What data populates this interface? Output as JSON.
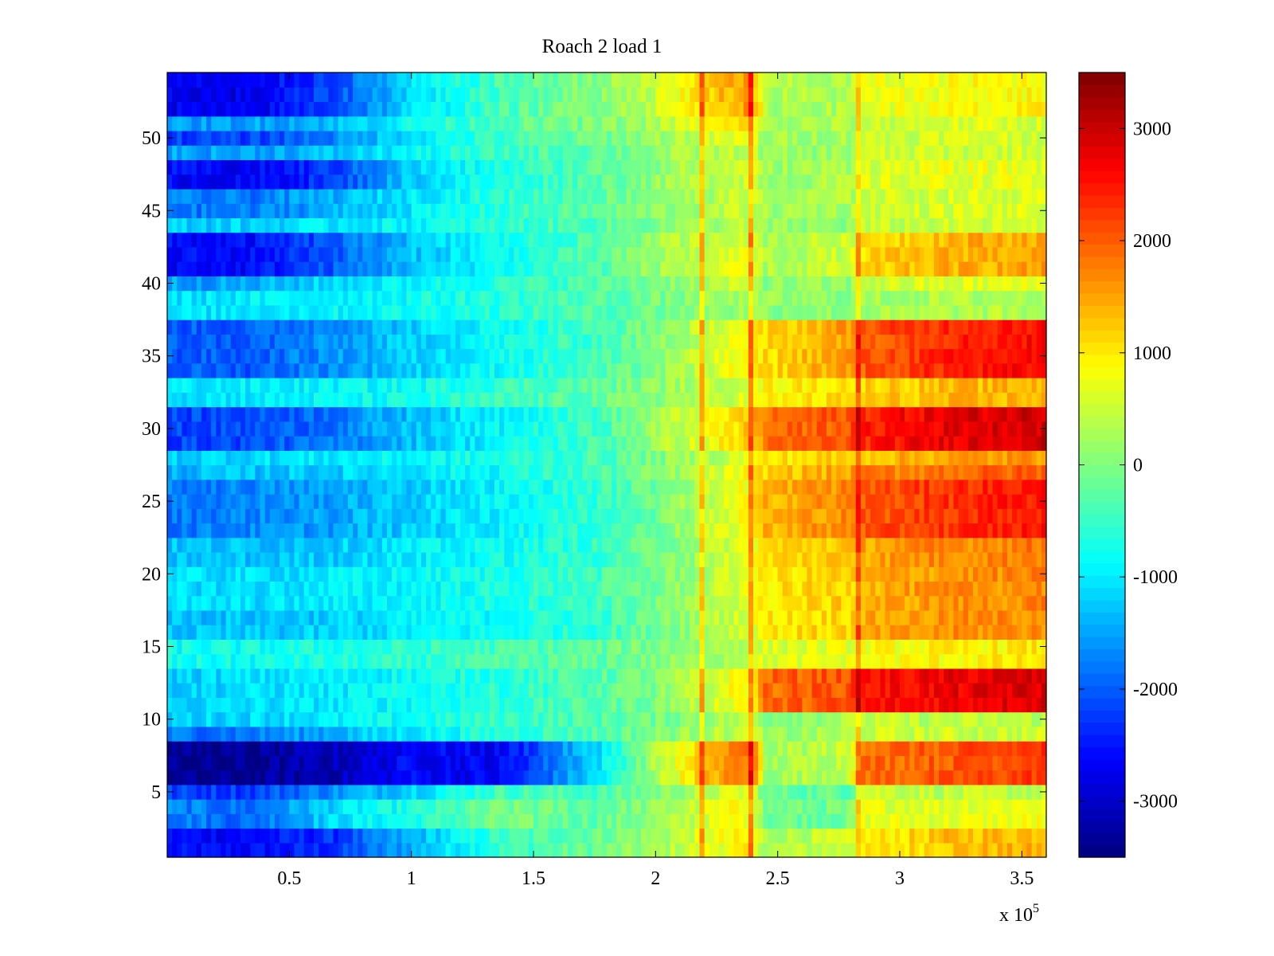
{
  "chart_data": {
    "type": "heatmap",
    "title": "Roach 2 load 1",
    "xlabel": "",
    "ylabel": "",
    "x_multiplier_label": "x 10",
    "x_multiplier_exponent": "5",
    "xlim": [
      0,
      3.6
    ],
    "ylim": [
      0.5,
      54.5
    ],
    "x_ticks": [
      0.5,
      1,
      1.5,
      2,
      2.5,
      3,
      3.5
    ],
    "x_tick_labels": [
      "0.5",
      "1",
      "1.5",
      "2",
      "2.5",
      "3",
      "3.5"
    ],
    "y_ticks": [
      5,
      10,
      15,
      20,
      25,
      30,
      35,
      40,
      45,
      50
    ],
    "y_tick_labels": [
      "5",
      "10",
      "15",
      "20",
      "25",
      "30",
      "35",
      "40",
      "45",
      "50"
    ],
    "rows": 54,
    "colorbar": {
      "colormap": "jet",
      "clim": [
        -3500,
        3500
      ],
      "ticks": [
        -3000,
        -2000,
        -1000,
        0,
        1000,
        2000,
        3000
      ],
      "tick_labels": [
        "-3000",
        "-2000",
        "-1000",
        "0",
        "1000",
        "2000",
        "3000"
      ]
    },
    "x_knots": [
      0,
      0.34,
      0.69,
      1.0,
      1.36,
      1.78,
      2.0,
      2.2,
      2.4,
      2.45,
      2.8,
      2.85,
      3.2,
      3.6
    ],
    "row_bands": [
      {
        "rows": [
          1,
          2
        ],
        "values": [
          -2600,
          -2600,
          -2300,
          -1400,
          -500,
          -100,
          200,
          700,
          900,
          300,
          500,
          900,
          1300,
          1400
        ]
      },
      {
        "rows": [
          3,
          4
        ],
        "values": [
          -1700,
          -1900,
          -1100,
          -700,
          -100,
          -200,
          100,
          600,
          900,
          -100,
          -100,
          700,
          700,
          800
        ]
      },
      {
        "rows": [
          5,
          5
        ],
        "values": [
          -2200,
          -2200,
          -1600,
          -1100,
          -400,
          -400,
          0,
          400,
          700,
          -200,
          -200,
          600,
          400,
          400
        ]
      },
      {
        "rows": [
          6,
          8
        ],
        "values": [
          -3400,
          -3400,
          -3100,
          -2600,
          -2700,
          -1000,
          300,
          1300,
          1900,
          200,
          500,
          1900,
          2000,
          2300
        ]
      },
      {
        "rows": [
          9,
          9
        ],
        "values": [
          -1800,
          -1800,
          -1400,
          -1000,
          -600,
          -300,
          0,
          300,
          500,
          100,
          300,
          500,
          500,
          500
        ]
      },
      {
        "rows": [
          10,
          10
        ],
        "values": [
          -1200,
          -1100,
          -1000,
          -800,
          -500,
          -300,
          -100,
          200,
          400,
          100,
          300,
          400,
          400,
          400
        ]
      },
      {
        "rows": [
          11,
          13
        ],
        "values": [
          -1200,
          -1100,
          -1000,
          -800,
          -600,
          -300,
          0,
          500,
          1000,
          1900,
          2100,
          2500,
          2700,
          2900
        ]
      },
      {
        "rows": [
          14,
          15
        ],
        "values": [
          -800,
          -800,
          -700,
          -600,
          -400,
          -200,
          0,
          200,
          500,
          600,
          700,
          800,
          900,
          1000
        ]
      },
      {
        "rows": [
          16,
          17
        ],
        "values": [
          -1300,
          -1300,
          -1200,
          -1000,
          -800,
          -500,
          -100,
          300,
          700,
          1000,
          1200,
          1400,
          1600,
          1700
        ]
      },
      {
        "rows": [
          18,
          20
        ],
        "values": [
          -1100,
          -1100,
          -1000,
          -900,
          -700,
          -400,
          -100,
          300,
          700,
          1000,
          1200,
          1400,
          1600,
          1700
        ]
      },
      {
        "rows": [
          21,
          22
        ],
        "values": [
          -1300,
          -1300,
          -1200,
          -1000,
          -800,
          -500,
          -100,
          300,
          800,
          1100,
          1300,
          1500,
          1700,
          1800
        ]
      },
      {
        "rows": [
          23,
          26
        ],
        "values": [
          -1800,
          -1700,
          -1500,
          -1200,
          -900,
          -500,
          -100,
          400,
          900,
          1400,
          1700,
          2000,
          2300,
          2500
        ]
      },
      {
        "rows": [
          27,
          27
        ],
        "values": [
          -1400,
          -1300,
          -1200,
          -1000,
          -800,
          -400,
          0,
          400,
          900,
          1200,
          1500,
          1700,
          1900,
          2000
        ]
      },
      {
        "rows": [
          28,
          28
        ],
        "values": [
          -1200,
          -1100,
          -1000,
          -900,
          -700,
          -400,
          0,
          300,
          700,
          1000,
          1200,
          1300,
          1500,
          1600
        ]
      },
      {
        "rows": [
          29,
          31
        ],
        "values": [
          -2200,
          -2100,
          -1800,
          -1300,
          -900,
          -400,
          200,
          700,
          1300,
          1800,
          2100,
          2400,
          2800,
          3000
        ]
      },
      {
        "rows": [
          32,
          33
        ],
        "values": [
          -1000,
          -1000,
          -900,
          -800,
          -500,
          -200,
          100,
          400,
          700,
          900,
          1100,
          1200,
          1300,
          1400
        ]
      },
      {
        "rows": [
          34,
          37
        ],
        "values": [
          -2000,
          -2000,
          -1600,
          -1200,
          -800,
          -400,
          0,
          500,
          900,
          1100,
          1600,
          2000,
          2400,
          2600
        ]
      },
      {
        "rows": [
          38,
          39
        ],
        "values": [
          -1100,
          -1000,
          -900,
          -800,
          -600,
          -300,
          -100,
          100,
          200,
          100,
          100,
          200,
          300,
          300
        ]
      },
      {
        "rows": [
          40,
          40
        ],
        "values": [
          -1500,
          -1500,
          -1100,
          -900,
          -600,
          -300,
          0,
          300,
          500,
          100,
          100,
          500,
          600,
          700
        ]
      },
      {
        "rows": [
          41,
          43
        ],
        "values": [
          -2600,
          -2600,
          -2000,
          -1300,
          -800,
          -300,
          200,
          500,
          700,
          300,
          500,
          1100,
          1400,
          1500
        ]
      },
      {
        "rows": [
          44,
          44
        ],
        "values": [
          -1200,
          -1200,
          -1000,
          -900,
          -600,
          -300,
          0,
          200,
          400,
          100,
          100,
          400,
          500,
          500
        ]
      },
      {
        "rows": [
          45,
          46
        ],
        "values": [
          -1800,
          -1800,
          -1400,
          -1000,
          -600,
          -200,
          100,
          300,
          500,
          200,
          300,
          500,
          600,
          600
        ]
      },
      {
        "rows": [
          47,
          48
        ],
        "values": [
          -2600,
          -2700,
          -2200,
          -1200,
          -700,
          -200,
          100,
          400,
          600,
          200,
          300,
          600,
          700,
          700
        ]
      },
      {
        "rows": [
          49,
          49
        ],
        "values": [
          -1500,
          -1500,
          -1300,
          -900,
          -500,
          -200,
          100,
          300,
          500,
          100,
          200,
          500,
          500,
          600
        ]
      },
      {
        "rows": [
          50,
          50
        ],
        "values": [
          -2200,
          -2200,
          -1700,
          -1000,
          -500,
          -100,
          200,
          500,
          700,
          200,
          300,
          500,
          600,
          600
        ]
      },
      {
        "rows": [
          51,
          51
        ],
        "values": [
          -1600,
          -1500,
          -1300,
          -800,
          -300,
          0,
          300,
          800,
          1100,
          200,
          300,
          500,
          600,
          600
        ]
      },
      {
        "rows": [
          52,
          54
        ],
        "values": [
          -2700,
          -2800,
          -2100,
          -1100,
          -400,
          100,
          500,
          1200,
          1600,
          300,
          300,
          700,
          800,
          900
        ]
      }
    ],
    "column_spikes": [
      {
        "x": 2.19,
        "width": 0.012,
        "delta": 1000
      },
      {
        "x": 2.385,
        "width": 0.012,
        "delta": 1100
      },
      {
        "x": 2.83,
        "width": 0.01,
        "delta": 900
      }
    ],
    "noise_amplitude": 550
  }
}
